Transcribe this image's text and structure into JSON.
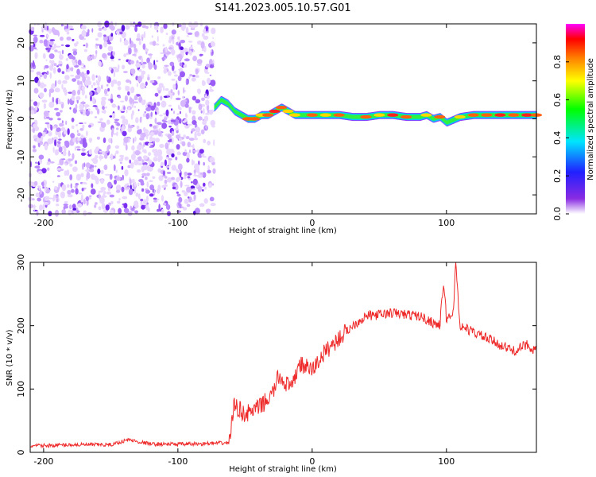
{
  "title": "S141.2023.005.10.57.G01",
  "chart_data": [
    {
      "type": "heatmap",
      "xlabel": "Height of straight line (km)",
      "ylabel": "Frequency (Hz)",
      "xlim": [
        -210,
        167
      ],
      "ylim": [
        -25,
        25
      ],
      "xticks": [
        -200,
        -100,
        0,
        100
      ],
      "yticks": [
        -20,
        -10,
        0,
        10,
        20
      ],
      "colorbar": {
        "label": "Normalized spectral amplitude",
        "ticks": [
          0.0,
          0.2,
          0.4,
          0.6,
          0.8
        ],
        "range": [
          0,
          1
        ],
        "colors": [
          "#ffffff",
          "#8a2be2",
          "#2020ff",
          "#00e5ff",
          "#00ff00",
          "#ffff00",
          "#ff8000",
          "#ff0000",
          "#ff00ff"
        ]
      },
      "noise_region_x": [
        -210,
        -73
      ],
      "ridge": {
        "x": [
          -73,
          -68,
          -63,
          -58,
          -53,
          -48,
          -43,
          -38,
          -33,
          -28,
          -23,
          -18,
          -13,
          -8,
          0,
          10,
          20,
          30,
          40,
          50,
          60,
          70,
          80,
          85,
          90,
          95,
          100,
          110,
          120,
          130,
          140,
          150,
          160,
          167
        ],
        "freq": [
          3,
          5,
          4,
          2,
          1,
          0,
          0,
          1,
          1,
          2,
          3,
          2,
          1,
          1,
          1,
          1,
          1,
          0.5,
          0.5,
          1,
          1,
          0.5,
          0.5,
          1,
          0,
          0.5,
          -1,
          0.5,
          1,
          1,
          1,
          1,
          1,
          1
        ],
        "amplitude": [
          0.4,
          0.5,
          0.5,
          0.6,
          0.7,
          0.9,
          0.9,
          0.8,
          0.9,
          1.0,
          0.9,
          0.8,
          0.8,
          0.7,
          0.9,
          0.8,
          0.9,
          0.7,
          0.9,
          0.8,
          1.0,
          0.9,
          0.7,
          0.8,
          0.6,
          0.9,
          0.7,
          0.8,
          0.9,
          0.9,
          1.0,
          0.9,
          1.0,
          0.9
        ]
      }
    },
    {
      "type": "line",
      "xlabel": "Height of straight line (km)",
      "ylabel": "SNR (10 * v/v)",
      "xlim": [
        -210,
        167
      ],
      "ylim": [
        0,
        300
      ],
      "xticks": [
        -200,
        -100,
        0,
        100
      ],
      "yticks": [
        0,
        100,
        200,
        300
      ],
      "series": [
        {
          "color": "#ee2a2a",
          "x": [
            -210,
            -180,
            -150,
            -137,
            -120,
            -90,
            -62,
            -58,
            -50,
            -40,
            -30,
            -25,
            -15,
            -10,
            0,
            10,
            20,
            30,
            40,
            60,
            80,
            95,
            98,
            100,
            105,
            107,
            110,
            120,
            140,
            150,
            160,
            167
          ],
          "y": [
            10,
            12,
            12,
            20,
            13,
            13,
            15,
            75,
            60,
            70,
            90,
            120,
            100,
            140,
            130,
            160,
            180,
            200,
            215,
            220,
            215,
            200,
            270,
            210,
            220,
            300,
            200,
            190,
            170,
            160,
            170,
            160
          ]
        }
      ]
    }
  ]
}
